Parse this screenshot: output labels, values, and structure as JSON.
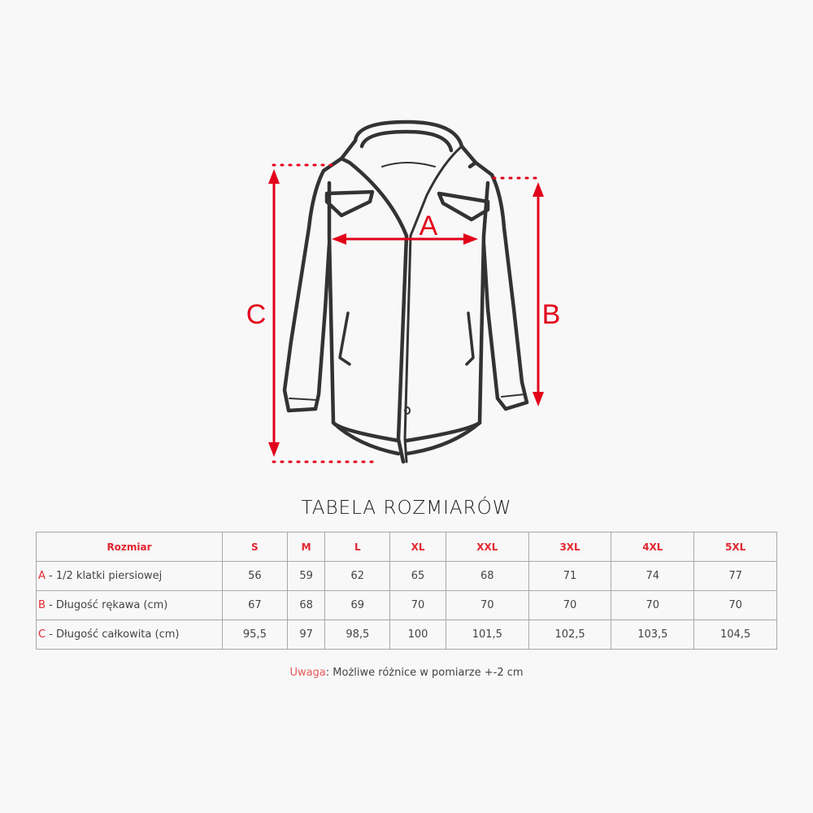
{
  "diagram": {
    "labels": {
      "a": "A",
      "b": "B",
      "c": "C"
    },
    "accent_color": "#e2001a",
    "outline_color": "#333333"
  },
  "title": "TABELA ROZMIARÓW",
  "table": {
    "header": [
      "Rozmiar",
      "S",
      "M",
      "L",
      "XL",
      "XXL",
      "3XL",
      "4XL",
      "5XL"
    ],
    "rows": [
      {
        "letter": "A",
        "label": " - 1/2 klatki piersiowej",
        "values": [
          "56",
          "59",
          "62",
          "65",
          "68",
          "71",
          "74",
          "77"
        ]
      },
      {
        "letter": "B",
        "label": " - Długość rękawa (cm)",
        "values": [
          "67",
          "68",
          "69",
          "70",
          "70",
          "70",
          "70",
          "70"
        ]
      },
      {
        "letter": "C",
        "label": " - Długość całkowita (cm)",
        "values": [
          "95,5",
          "97",
          "98,5",
          "100",
          "101,5",
          "102,5",
          "103,5",
          "104,5"
        ]
      }
    ]
  },
  "note": {
    "prefix": "Uwaga",
    "text": ": Możliwe różnice w pomiarze +-2 cm"
  }
}
